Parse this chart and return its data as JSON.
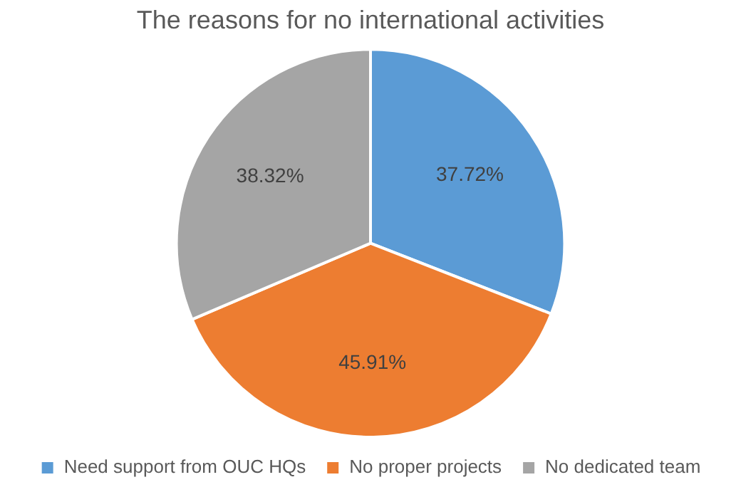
{
  "chart_data": {
    "type": "pie",
    "title": "The reasons for no international activities",
    "categories": [
      "Need support from OUC HQs",
      "No proper projects",
      "No dedicated team"
    ],
    "values": [
      37.72,
      45.91,
      38.32
    ],
    "colors": [
      "#5b9bd5",
      "#ed7d31",
      "#a5a5a5"
    ],
    "value_labels": [
      "37.72%",
      "45.91%",
      "38.32%"
    ],
    "legend": "bottom"
  }
}
